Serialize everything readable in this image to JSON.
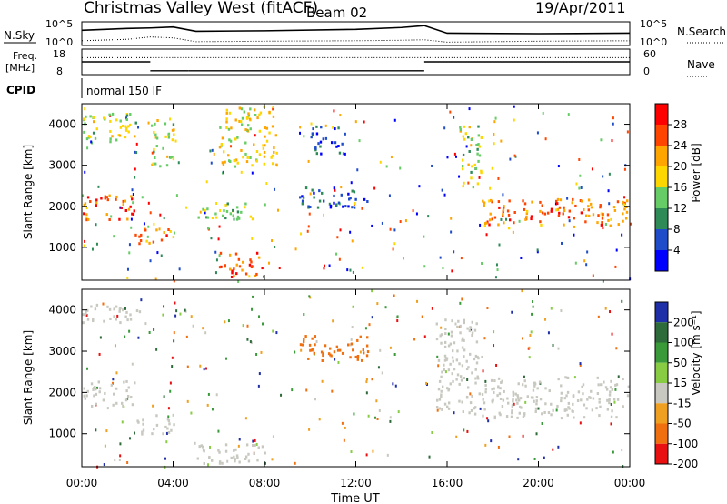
{
  "header": {
    "station": "Christmas Valley West (fitACF)",
    "beam": "Beam 02",
    "date": "19/Apr/2011"
  },
  "chart_data": [
    {
      "type": "line",
      "panel": "noise",
      "left_label": "N.Sky",
      "right_label": "N.Search",
      "left_ticks": [
        "10^5",
        "10^0"
      ],
      "right_ticks": [
        "10^5",
        "10^0"
      ],
      "x": [
        "00:00",
        "02:00",
        "03:00",
        "04:00",
        "05:00",
        "08:00",
        "12:00",
        "14:00",
        "15:00",
        "16:00",
        "20:00",
        "24:00"
      ],
      "series": [
        {
          "name": "N.Sky",
          "values": [
            3.2,
            3.6,
            3.7,
            3.9,
            3.0,
            3.1,
            3.4,
            3.8,
            4.2,
            2.6,
            2.5,
            2.6
          ]
        },
        {
          "name": "N.Search",
          "values": [
            1.0,
            1.3,
            1.8,
            1.6,
            0.8,
            0.9,
            1.0,
            1.1,
            1.2,
            0.7,
            0.9,
            1.0
          ]
        }
      ]
    },
    {
      "type": "line",
      "panel": "frequency",
      "left_label": [
        "Freq.",
        "[MHz]"
      ],
      "right_label": "Nave",
      "left_ticks": [
        "18",
        "8"
      ],
      "right_ticks": [
        "60",
        "0"
      ],
      "segments": [
        {
          "x0": "00:00",
          "x1": "03:00",
          "freq": 13.0,
          "nave": 40
        },
        {
          "x0": "03:00",
          "x1": "04:40",
          "freq": 9.5,
          "nave": 40
        },
        {
          "x0": "04:40",
          "x1": "15:00",
          "freq": 9.5,
          "nave": 40
        },
        {
          "x0": "15:00",
          "x1": "24:00",
          "freq": 13.0,
          "nave": 40
        }
      ]
    },
    {
      "type": "text",
      "panel": "cpid",
      "label": "CPID",
      "text": "normal 150 IF"
    },
    {
      "type": "heatmap",
      "panel": "power",
      "ylabel": "Slant Range [km]",
      "yticks": [
        "1000",
        "2000",
        "3000",
        "4000"
      ],
      "ylim": [
        200,
        4500
      ],
      "xlim": [
        "00:00",
        "24:00"
      ],
      "colorbar_label": "Power [dB]",
      "colorbar_ticks": [
        "4",
        "8",
        "12",
        "16",
        "20",
        "24",
        "28"
      ],
      "colorbar_colors": [
        "#0000ff",
        "#1f4cc8",
        "#2e8b57",
        "#66cc66",
        "#ffd700",
        "#ffa500",
        "#ff4500",
        "#ff0000"
      ],
      "regions": [
        {
          "t0": 0.0,
          "t1": 2.3,
          "r0": 1700,
          "r1": 2300,
          "value": 26
        },
        {
          "t0": 2.3,
          "t1": 4.0,
          "r0": 1100,
          "r1": 1500,
          "value": 24
        },
        {
          "t0": 0.0,
          "t1": 2.5,
          "r0": 3600,
          "r1": 4300,
          "value": 16
        },
        {
          "t0": 3.0,
          "t1": 4.0,
          "r0": 3000,
          "r1": 4200,
          "value": 16
        },
        {
          "t0": 6.0,
          "t1": 8.0,
          "r0": 300,
          "r1": 900,
          "value": 26
        },
        {
          "t0": 5.0,
          "t1": 8.0,
          "r0": 1700,
          "r1": 2100,
          "value": 14
        },
        {
          "t0": 6.0,
          "t1": 8.5,
          "r0": 3000,
          "r1": 4500,
          "value": 18
        },
        {
          "t0": 9.5,
          "t1": 12.5,
          "r0": 2000,
          "r1": 2500,
          "value": 6
        },
        {
          "t0": 10.0,
          "t1": 11.5,
          "r0": 3300,
          "r1": 4000,
          "value": 6
        },
        {
          "t0": 16.5,
          "t1": 17.5,
          "r0": 2500,
          "r1": 4000,
          "value": 16
        },
        {
          "t0": 17.5,
          "t1": 24.0,
          "r0": 1500,
          "r1": 2200,
          "value": 24
        }
      ]
    },
    {
      "type": "heatmap",
      "panel": "velocity",
      "xlabel": "Time UT",
      "xticks": [
        "00:00",
        "04:00",
        "08:00",
        "12:00",
        "16:00",
        "20:00",
        "00:00"
      ],
      "ylabel": "Slant Range [km]",
      "yticks": [
        "1000",
        "2000",
        "3000",
        "4000"
      ],
      "ylim": [
        200,
        4500
      ],
      "colorbar_label": "Velocity [m s⁻¹]",
      "colorbar_ticks": [
        "200",
        "100",
        "50",
        "15",
        "-15",
        "-50",
        "-100",
        "-200"
      ],
      "colorbar_colors": [
        "#1f2fa8",
        "#2e6b3a",
        "#3a9a3a",
        "#88cc44",
        "#c8c8c0",
        "#f0a020",
        "#f07010",
        "#e81010"
      ],
      "regions": [
        {
          "t0": 0.0,
          "t1": 2.3,
          "r0": 1700,
          "r1": 2300,
          "value": 0
        },
        {
          "t0": 2.3,
          "t1": 4.0,
          "r0": 1000,
          "r1": 1500,
          "value": 0
        },
        {
          "t0": 0.0,
          "t1": 2.5,
          "r0": 3700,
          "r1": 4200,
          "value": 0
        },
        {
          "t0": 5.0,
          "t1": 8.0,
          "r0": 300,
          "r1": 800,
          "value": 0
        },
        {
          "t0": 9.5,
          "t1": 12.5,
          "r0": 2800,
          "r1": 3400,
          "value": -80
        },
        {
          "t0": 15.5,
          "t1": 17.5,
          "r0": 1500,
          "r1": 3800,
          "value": 0
        },
        {
          "t0": 17.5,
          "t1": 24.0,
          "r0": 1400,
          "r1": 2400,
          "value": 0
        }
      ]
    }
  ]
}
